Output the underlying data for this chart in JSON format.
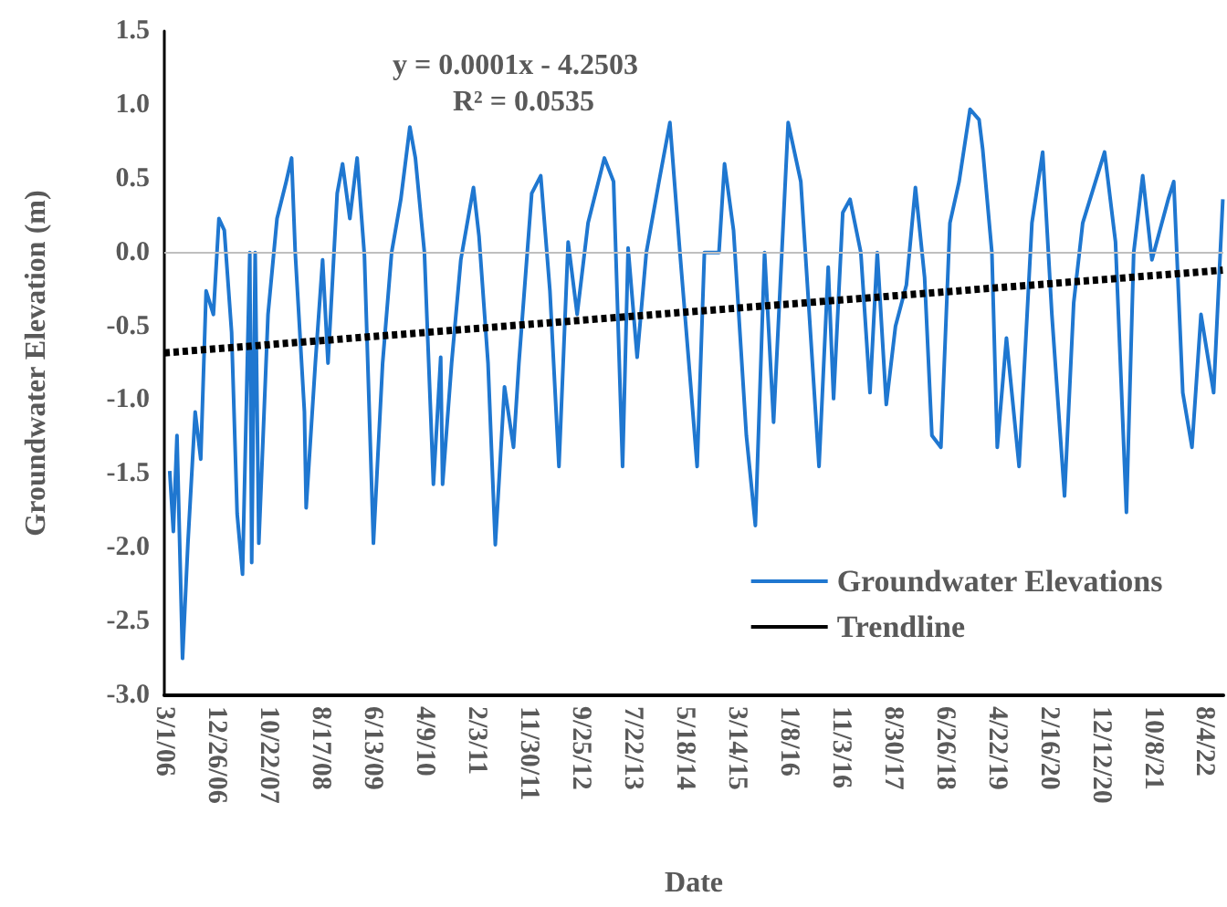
{
  "chart_data": {
    "type": "line",
    "xlabel": "Date",
    "ylabel": "Groundwater Elevation (m)",
    "annotations": [
      "y = 0.0001x - 4.2503",
      "R² = 0.0535"
    ],
    "xlim": [
      "2006-03-01",
      "2022-11-20"
    ],
    "xticks": [
      {
        "value": "2006-03-01",
        "label": "3/1/06"
      },
      {
        "value": "2006-12-26",
        "label": "12/26/06"
      },
      {
        "value": "2007-10-22",
        "label": "10/22/07"
      },
      {
        "value": "2008-08-17",
        "label": "8/17/08"
      },
      {
        "value": "2009-06-13",
        "label": "6/13/09"
      },
      {
        "value": "2010-04-09",
        "label": "4/9/10"
      },
      {
        "value": "2011-02-03",
        "label": "2/3/11"
      },
      {
        "value": "2011-11-30",
        "label": "11/30/11"
      },
      {
        "value": "2012-09-25",
        "label": "9/25/12"
      },
      {
        "value": "2013-07-22",
        "label": "7/22/13"
      },
      {
        "value": "2014-05-18",
        "label": "5/18/14"
      },
      {
        "value": "2015-03-14",
        "label": "3/14/15"
      },
      {
        "value": "2016-01-08",
        "label": "1/8/16"
      },
      {
        "value": "2016-11-03",
        "label": "11/3/16"
      },
      {
        "value": "2017-08-30",
        "label": "8/30/17"
      },
      {
        "value": "2018-06-26",
        "label": "6/26/18"
      },
      {
        "value": "2019-04-22",
        "label": "4/22/19"
      },
      {
        "value": "2020-02-16",
        "label": "2/16/20"
      },
      {
        "value": "2020-12-12",
        "label": "12/12/20"
      },
      {
        "value": "2021-10-08",
        "label": "10/8/21"
      },
      {
        "value": "2022-08-04",
        "label": "8/4/22"
      }
    ],
    "ylim": [
      -3,
      1.5
    ],
    "yticks": [
      {
        "value": -3,
        "label": "-3.0"
      },
      {
        "value": -2.5,
        "label": "-2.5"
      },
      {
        "value": -2,
        "label": "-2.0"
      },
      {
        "value": -1.5,
        "label": "-1.5"
      },
      {
        "value": -1,
        "label": "-1.0"
      },
      {
        "value": -0.5,
        "label": "-0.5"
      },
      {
        "value": 0,
        "label": "0.0"
      },
      {
        "value": 0.5,
        "label": "0.5"
      },
      {
        "value": 1,
        "label": "1.0"
      },
      {
        "value": 1.5,
        "label": "1.5"
      }
    ],
    "grid": false,
    "legend": "bottom right",
    "marker": "none",
    "ref_lines": [
      {
        "axis": "y",
        "value": 0,
        "color": "#bfbfbf"
      }
    ],
    "series": [
      {
        "name": "Groundwater Elevations",
        "color": "#1f77d0",
        "line_style": "solid",
        "x": [
          "2006-04-01",
          "2006-04-22",
          "2006-05-13",
          "2006-06-14",
          "2006-07-15",
          "2006-08-26",
          "2006-09-27",
          "2006-10-28",
          "2006-12-09",
          "2007-01-10",
          "2007-02-10",
          "2007-03-24",
          "2007-04-25",
          "2007-05-26",
          "2007-07-07",
          "2007-07-18",
          "2007-08-07",
          "2007-08-28",
          "2007-10-20",
          "2007-12-11",
          "2008-02-02",
          "2008-03-04",
          "2008-03-25",
          "2008-05-17",
          "2008-05-27",
          "2008-07-19",
          "2008-08-30",
          "2008-09-30",
          "2008-11-22",
          "2008-12-23",
          "2009-02-03",
          "2009-03-17",
          "2009-04-28",
          "2009-06-19",
          "2009-08-11",
          "2009-10-02",
          "2009-11-24",
          "2010-01-15",
          "2010-02-16",
          "2010-04-09",
          "2010-05-31",
          "2010-07-12",
          "2010-07-23",
          "2010-09-13",
          "2010-11-05",
          "2011-01-17",
          "2011-02-18",
          "2011-04-11",
          "2011-05-23",
          "2011-07-15",
          "2011-09-05",
          "2011-10-06",
          "2011-12-19",
          "2012-02-09",
          "2012-04-02",
          "2012-05-24",
          "2012-07-16",
          "2012-09-06",
          "2012-11-08",
          "2013-02-10",
          "2013-04-04",
          "2013-05-26",
          "2013-06-27",
          "2013-08-18",
          "2013-10-10",
          "2013-12-22",
          "2014-02-23",
          "2014-04-17",
          "2014-06-29",
          "2014-07-30",
          "2014-09-10",
          "2014-12-03",
          "2015-01-04",
          "2015-02-25",
          "2015-05-10",
          "2015-07-01",
          "2015-08-23",
          "2015-10-14",
          "2016-01-06",
          "2016-03-19",
          "2016-07-02",
          "2016-08-24",
          "2016-09-24",
          "2016-11-16",
          "2016-12-28",
          "2017-02-28",
          "2017-04-22",
          "2017-06-03",
          "2017-07-25",
          "2017-09-16",
          "2017-11-18",
          "2018-01-09",
          "2018-03-03",
          "2018-04-14",
          "2018-06-05",
          "2018-07-27",
          "2018-09-18",
          "2018-11-20",
          "2019-01-11",
          "2019-02-01",
          "2019-03-26",
          "2019-04-26",
          "2019-06-18",
          "2019-08-30",
          "2019-11-12",
          "2020-01-13",
          "2020-03-06",
          "2020-05-18",
          "2020-07-10",
          "2020-08-31",
          "2021-01-04",
          "2021-03-08",
          "2021-05-10",
          "2021-06-21",
          "2021-08-12",
          "2021-10-04",
          "2022-01-06",
          "2022-02-07",
          "2022-03-31",
          "2022-05-23",
          "2022-07-14",
          "2022-09-25",
          "2022-11-17"
        ],
        "values": [
          -1.48,
          -1.89,
          -1.24,
          -2.75,
          -1.97,
          -1.08,
          -1.4,
          -0.26,
          -0.42,
          0.23,
          0.15,
          -0.54,
          -1.77,
          -2.18,
          0.0,
          -2.1,
          0.0,
          -1.97,
          -0.42,
          0.23,
          0.48,
          0.64,
          0.0,
          -1.08,
          -1.73,
          -0.75,
          -0.05,
          -0.75,
          0.4,
          0.6,
          0.23,
          0.64,
          -0.02,
          -1.97,
          -0.75,
          0.0,
          0.36,
          0.85,
          0.64,
          0.0,
          -1.57,
          -0.71,
          -1.57,
          -0.75,
          -0.05,
          0.44,
          0.11,
          -0.75,
          -1.98,
          -0.91,
          -1.32,
          -0.75,
          0.4,
          0.52,
          -0.26,
          -1.45,
          0.07,
          -0.42,
          0.2,
          0.64,
          0.48,
          -1.45,
          0.03,
          -0.71,
          0.0,
          0.48,
          0.88,
          0.07,
          -0.99,
          -1.45,
          0.0,
          0.0,
          0.6,
          0.15,
          -1.24,
          -1.85,
          0.0,
          -1.15,
          0.88,
          0.48,
          -1.45,
          -0.1,
          -0.99,
          0.27,
          0.36,
          0.0,
          -0.95,
          0.0,
          -1.03,
          -0.5,
          -0.22,
          0.44,
          -0.17,
          -1.24,
          -1.32,
          0.2,
          0.48,
          0.97,
          0.9,
          0.7,
          0.0,
          -1.32,
          -0.58,
          -1.45,
          0.2,
          0.68,
          -0.42,
          -1.65,
          -0.34,
          0.2,
          0.68,
          0.07,
          -1.76,
          0.0,
          0.52,
          -0.05,
          0.36,
          0.48,
          -0.95,
          -1.32,
          -0.42,
          -0.95,
          0.36
        ]
      },
      {
        "name": "Trendline",
        "color": "#000000",
        "line_style": "dashed",
        "x": [
          "2006-03-01",
          "2022-11-17"
        ],
        "values": [
          -0.68,
          -0.12
        ]
      }
    ]
  }
}
